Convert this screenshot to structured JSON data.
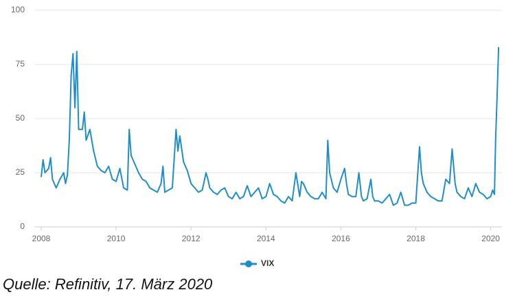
{
  "chart_data": {
    "type": "line",
    "x": [
      2008.0,
      2008.05,
      2008.1,
      2008.2,
      2008.25,
      2008.3,
      2008.4,
      2008.5,
      2008.6,
      2008.65,
      2008.7,
      2008.75,
      2008.8,
      2008.85,
      2008.9,
      2008.95,
      2009.0,
      2009.1,
      2009.15,
      2009.2,
      2009.3,
      2009.4,
      2009.5,
      2009.6,
      2009.7,
      2009.8,
      2009.9,
      2010.0,
      2010.1,
      2010.2,
      2010.3,
      2010.35,
      2010.4,
      2010.5,
      2010.6,
      2010.7,
      2010.8,
      2010.9,
      2011.0,
      2011.1,
      2011.2,
      2011.25,
      2011.3,
      2011.4,
      2011.5,
      2011.6,
      2011.65,
      2011.7,
      2011.8,
      2011.9,
      2012.0,
      2012.1,
      2012.2,
      2012.3,
      2012.4,
      2012.45,
      2012.5,
      2012.6,
      2012.7,
      2012.8,
      2012.9,
      2013.0,
      2013.1,
      2013.2,
      2013.3,
      2013.4,
      2013.5,
      2013.6,
      2013.7,
      2013.8,
      2013.9,
      2014.0,
      2014.1,
      2014.2,
      2014.3,
      2014.4,
      2014.5,
      2014.6,
      2014.7,
      2014.8,
      2014.9,
      2014.95,
      2015.0,
      2015.1,
      2015.2,
      2015.3,
      2015.4,
      2015.5,
      2015.6,
      2015.65,
      2015.7,
      2015.8,
      2015.9,
      2016.0,
      2016.1,
      2016.15,
      2016.2,
      2016.3,
      2016.4,
      2016.48,
      2016.55,
      2016.6,
      2016.7,
      2016.8,
      2016.85,
      2016.9,
      2017.0,
      2017.1,
      2017.2,
      2017.3,
      2017.4,
      2017.5,
      2017.6,
      2017.7,
      2017.8,
      2017.9,
      2018.0,
      2018.1,
      2018.15,
      2018.2,
      2018.3,
      2018.4,
      2018.5,
      2018.6,
      2018.7,
      2018.8,
      2018.9,
      2018.97,
      2019.05,
      2019.1,
      2019.2,
      2019.3,
      2019.4,
      2019.5,
      2019.6,
      2019.7,
      2019.8,
      2019.9,
      2020.0,
      2020.05,
      2020.1,
      2020.13,
      2020.17,
      2020.21
    ],
    "series": [
      {
        "name": "VIX",
        "color": "#1f8dc8",
        "values": [
          23,
          31,
          25,
          27,
          32,
          22,
          18,
          22,
          25,
          20,
          24,
          40,
          70,
          80,
          55,
          81,
          45,
          45,
          53,
          40,
          45,
          35,
          28,
          26,
          25,
          28,
          22,
          21,
          27,
          18,
          17,
          45,
          33,
          29,
          25,
          22,
          21,
          18,
          17,
          16,
          20,
          28,
          16,
          17,
          18,
          45,
          35,
          42,
          30,
          26,
          20,
          18,
          16,
          17,
          25,
          22,
          18,
          16,
          15,
          17,
          18,
          14,
          13,
          16,
          13,
          14,
          19,
          14,
          16,
          18,
          13,
          14,
          20,
          15,
          14,
          12,
          11,
          14,
          12,
          25,
          14,
          21,
          20,
          16,
          14,
          13,
          13,
          16,
          13,
          40,
          25,
          18,
          16,
          22,
          27,
          20,
          15,
          14,
          14,
          25,
          14,
          12,
          13,
          22,
          14,
          12,
          12,
          11,
          13,
          15,
          10,
          11,
          16,
          10,
          10,
          11,
          11,
          37,
          25,
          20,
          16,
          14,
          13,
          12,
          12,
          22,
          20,
          36,
          20,
          16,
          14,
          13,
          18,
          14,
          20,
          16,
          15,
          13,
          14,
          17,
          15,
          40,
          60,
          83
        ]
      }
    ],
    "xlim": [
      2008,
      2020.3
    ],
    "xticks": [
      2008,
      2010,
      2012,
      2014,
      2016,
      2018,
      2020
    ],
    "ylim": [
      0,
      100
    ],
    "yticks": [
      0,
      25,
      50,
      75,
      100
    ],
    "grid": true,
    "caption": "Quelle: Refinitiv, 17. März 2020"
  }
}
